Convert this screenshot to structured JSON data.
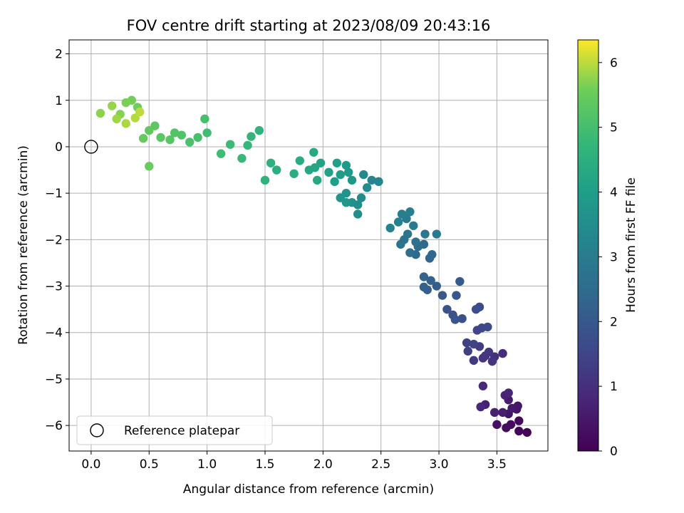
{
  "chart_data": {
    "type": "scatter",
    "title": "FOV centre drift starting at 2023/08/09 20:43:16",
    "xlabel": "Angular distance from reference (arcmin)",
    "ylabel": "Rotation from reference (arcmin)",
    "xlim": [
      -0.19,
      3.94
    ],
    "ylim": [
      -6.55,
      2.3
    ],
    "x_ticks": [
      0.0,
      0.5,
      1.0,
      1.5,
      2.0,
      2.5,
      3.0,
      3.5
    ],
    "x_tick_labels": [
      "0.0",
      "0.5",
      "1.0",
      "1.5",
      "2.0",
      "2.5",
      "3.0",
      "3.5"
    ],
    "y_ticks": [
      -6,
      -5,
      -4,
      -3,
      -2,
      -1,
      0,
      1,
      2
    ],
    "y_tick_labels": [
      "−6",
      "−5",
      "−4",
      "−3",
      "−2",
      "−1",
      "0",
      "1",
      "2"
    ],
    "grid": true,
    "legend": {
      "placement": "lower-left",
      "entries": [
        "Reference platepar"
      ]
    },
    "reference_point": {
      "x": 0.0,
      "y": 0.0
    },
    "colorbar": {
      "label": "Hours from first FF file",
      "min": 0,
      "max": 6.35,
      "ticks": [
        0,
        1,
        2,
        3,
        4,
        5,
        6
      ],
      "tick_labels": [
        "0",
        "1",
        "2",
        "3",
        "4",
        "5",
        "6"
      ],
      "colormap": "viridis"
    },
    "series": [
      {
        "points": [
          [
            3.76,
            -6.15,
            0.05
          ],
          [
            3.69,
            -6.12,
            0.1
          ],
          [
            3.69,
            -5.9,
            0.15
          ],
          [
            3.62,
            -5.98,
            0.2
          ],
          [
            3.58,
            -6.05,
            0.25
          ],
          [
            3.5,
            -5.98,
            0.3
          ],
          [
            3.6,
            -5.75,
            0.35
          ],
          [
            3.67,
            -5.65,
            0.4
          ],
          [
            3.68,
            -5.58,
            0.45
          ],
          [
            3.63,
            -5.63,
            0.5
          ],
          [
            3.6,
            -5.45,
            0.55
          ],
          [
            3.55,
            -5.72,
            0.6
          ],
          [
            3.48,
            -5.72,
            0.65
          ],
          [
            3.4,
            -5.55,
            0.7
          ],
          [
            3.57,
            -5.35,
            0.75
          ],
          [
            3.6,
            -5.3,
            0.8
          ],
          [
            3.36,
            -5.6,
            0.85
          ],
          [
            3.38,
            -5.15,
            0.9
          ],
          [
            3.55,
            -4.45,
            0.95
          ],
          [
            3.48,
            -4.52,
            1.0
          ],
          [
            3.4,
            -4.5,
            1.05
          ],
          [
            3.46,
            -4.62,
            1.1
          ],
          [
            3.38,
            -4.55,
            1.15
          ],
          [
            3.43,
            -4.42,
            1.2
          ],
          [
            3.3,
            -4.6,
            1.25
          ],
          [
            3.35,
            -4.3,
            1.3
          ],
          [
            3.25,
            -4.4,
            1.35
          ],
          [
            3.24,
            -4.22,
            1.4
          ],
          [
            3.3,
            -4.25,
            1.45
          ],
          [
            3.33,
            -3.95,
            1.5
          ],
          [
            3.37,
            -3.9,
            1.55
          ],
          [
            3.42,
            -3.88,
            1.6
          ],
          [
            3.35,
            -3.45,
            1.65
          ],
          [
            3.32,
            -3.5,
            1.7
          ],
          [
            3.2,
            -3.7,
            1.75
          ],
          [
            3.12,
            -3.62,
            1.8
          ],
          [
            3.07,
            -3.5,
            1.85
          ],
          [
            3.14,
            -3.72,
            1.9
          ],
          [
            3.15,
            -3.2,
            1.95
          ],
          [
            3.03,
            -3.2,
            2.0
          ],
          [
            3.18,
            -2.9,
            2.05
          ],
          [
            2.98,
            -3.0,
            2.1
          ],
          [
            2.9,
            -3.08,
            2.15
          ],
          [
            2.87,
            -3.02,
            2.2
          ],
          [
            2.93,
            -2.88,
            2.25
          ],
          [
            2.87,
            -2.8,
            2.3
          ],
          [
            2.92,
            -2.4,
            2.35
          ],
          [
            2.94,
            -2.32,
            2.4
          ],
          [
            2.8,
            -2.32,
            2.45
          ],
          [
            2.87,
            -2.1,
            2.5
          ],
          [
            2.82,
            -2.15,
            2.55
          ],
          [
            2.75,
            -2.28,
            2.6
          ],
          [
            2.8,
            -2.05,
            2.65
          ],
          [
            2.7,
            -2.0,
            2.7
          ],
          [
            2.67,
            -2.1,
            2.75
          ],
          [
            2.73,
            -1.88,
            2.8
          ],
          [
            2.88,
            -1.88,
            2.85
          ],
          [
            2.98,
            -1.88,
            2.9
          ],
          [
            2.78,
            -1.7,
            2.95
          ],
          [
            2.72,
            -1.55,
            3.0
          ],
          [
            2.68,
            -1.45,
            3.05
          ],
          [
            2.75,
            -1.4,
            3.1
          ],
          [
            2.65,
            -1.62,
            3.15
          ],
          [
            2.58,
            -1.75,
            3.2
          ],
          [
            2.48,
            -0.75,
            3.25
          ],
          [
            2.42,
            -0.72,
            3.3
          ],
          [
            2.35,
            -0.6,
            3.35
          ],
          [
            2.38,
            -0.88,
            3.4
          ],
          [
            2.33,
            -1.1,
            3.45
          ],
          [
            2.3,
            -1.25,
            3.5
          ],
          [
            2.3,
            -1.45,
            3.55
          ],
          [
            2.25,
            -1.2,
            3.6
          ],
          [
            2.2,
            -1.0,
            3.65
          ],
          [
            2.15,
            -1.1,
            3.7
          ],
          [
            2.2,
            -1.2,
            3.75
          ],
          [
            2.25,
            -0.72,
            3.8
          ],
          [
            2.22,
            -0.55,
            3.85
          ],
          [
            2.2,
            -0.4,
            3.9
          ],
          [
            2.15,
            -0.6,
            3.95
          ],
          [
            2.1,
            -0.75,
            4.0
          ],
          [
            2.12,
            -0.35,
            4.05
          ],
          [
            2.05,
            -0.55,
            4.1
          ],
          [
            1.98,
            -0.35,
            4.15
          ],
          [
            1.93,
            -0.45,
            4.2
          ],
          [
            1.88,
            -0.5,
            4.25
          ],
          [
            1.95,
            -0.72,
            4.3
          ],
          [
            1.92,
            -0.12,
            4.35
          ],
          [
            1.8,
            -0.3,
            4.4
          ],
          [
            1.75,
            -0.58,
            4.45
          ],
          [
            1.6,
            -0.5,
            4.5
          ],
          [
            1.55,
            -0.35,
            4.55
          ],
          [
            1.5,
            -0.72,
            4.6
          ],
          [
            1.45,
            0.35,
            4.65
          ],
          [
            1.38,
            0.22,
            4.7
          ],
          [
            1.35,
            0.03,
            4.75
          ],
          [
            1.3,
            -0.25,
            4.8
          ],
          [
            1.2,
            0.05,
            4.85
          ],
          [
            1.12,
            -0.15,
            4.9
          ],
          [
            1.0,
            0.3,
            4.95
          ],
          [
            0.98,
            0.6,
            5.0
          ],
          [
            0.92,
            0.2,
            5.05
          ],
          [
            0.85,
            0.1,
            5.1
          ],
          [
            0.78,
            0.25,
            5.15
          ],
          [
            0.72,
            0.3,
            5.2
          ],
          [
            0.68,
            0.15,
            5.25
          ],
          [
            0.6,
            0.2,
            5.3
          ],
          [
            0.55,
            0.45,
            5.35
          ],
          [
            0.5,
            0.35,
            5.4
          ],
          [
            0.45,
            0.18,
            5.45
          ],
          [
            0.5,
            -0.42,
            5.5
          ],
          [
            0.4,
            0.85,
            5.55
          ],
          [
            0.35,
            1.0,
            5.6
          ],
          [
            0.3,
            0.95,
            5.65
          ],
          [
            0.25,
            0.7,
            5.7
          ],
          [
            0.08,
            0.72,
            5.75
          ],
          [
            0.18,
            0.88,
            5.8
          ],
          [
            0.22,
            0.6,
            5.85
          ],
          [
            0.3,
            0.5,
            5.9
          ],
          [
            0.38,
            0.62,
            5.95
          ],
          [
            0.42,
            0.75,
            6.0
          ]
        ]
      }
    ]
  }
}
